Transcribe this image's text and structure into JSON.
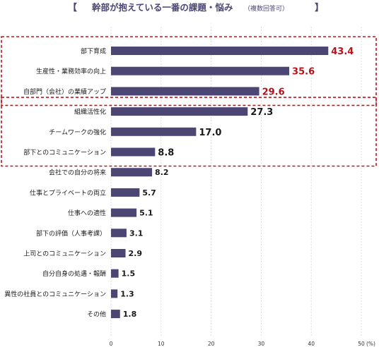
{
  "chart_data": {
    "type": "bar",
    "orientation": "horizontal",
    "title_open": "【",
    "title": "幹部が抱えている一番の課題・悩み",
    "title_note": "（複数回答可）",
    "title_close": "】",
    "categories": [
      "部下育成",
      "生産性・業務効率の向上",
      "自部門（会社）の業績アップ",
      "組織活性化",
      "チームワークの強化",
      "部下とのコミュニケーション",
      "会社での自分の将来",
      "仕事とプライベートの両立",
      "仕事への適性",
      "部下の評価（人事考課）",
      "上司とのコミュニケーション",
      "自分自身の処遇・報酬",
      "異性の社員とのコミュニケーション",
      "その他"
    ],
    "values": [
      43.4,
      35.6,
      29.6,
      27.3,
      17.0,
      8.8,
      8.2,
      5.7,
      5.1,
      3.1,
      2.9,
      1.5,
      1.3,
      1.8
    ],
    "value_labels": [
      "43.4",
      "35.6",
      "29.6",
      "27.3",
      "17.0",
      "8.8",
      "8.2",
      "5.7",
      "5.1",
      "3.1",
      "2.9",
      "1.5",
      "1.3",
      "1.8"
    ],
    "label_colors": [
      "#b5121b",
      "#b5121b",
      "#b5121b",
      "#1a1a1a",
      "#1a1a1a",
      "#1a1a1a",
      "#1a1a1a",
      "#1a1a1a",
      "#1a1a1a",
      "#1a1a1a",
      "#1a1a1a",
      "#1a1a1a",
      "#1a1a1a",
      "#1a1a1a"
    ],
    "highlight_groups": [
      [
        0,
        2
      ],
      [
        3,
        5
      ]
    ],
    "xlim": [
      0,
      50
    ],
    "xticks": [
      "0",
      "10",
      "20",
      "30",
      "40",
      "50"
    ],
    "x_unit": "(%)",
    "grid": true,
    "colors": {
      "bar": "#4b4674",
      "title": "#4b4674",
      "highlight_border": "#c0121b",
      "grid": "#d6d6d6",
      "axis_text": "#333333"
    }
  }
}
